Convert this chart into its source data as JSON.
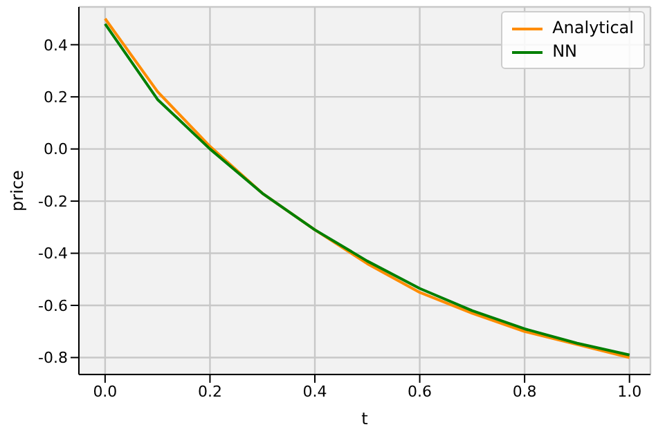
{
  "chart_data": {
    "type": "line",
    "xlabel": "t",
    "ylabel": "price",
    "x": [
      0,
      0.1,
      0.2,
      0.3,
      0.4,
      0.5,
      0.6,
      0.7,
      0.8,
      0.9,
      1.0
    ],
    "series": [
      {
        "name": "Analytical",
        "color": "#ff8c00",
        "values": [
          0.5,
          0.22,
          0.01,
          -0.17,
          -0.31,
          -0.44,
          -0.55,
          -0.63,
          -0.7,
          -0.75,
          -0.8
        ]
      },
      {
        "name": "NN",
        "color": "#007f00",
        "values": [
          0.48,
          0.19,
          0.0,
          -0.17,
          -0.31,
          -0.43,
          -0.535,
          -0.62,
          -0.69,
          -0.745,
          -0.79
        ]
      }
    ],
    "xlim": [
      -0.05,
      1.04
    ],
    "ylim": [
      -0.865,
      0.545
    ],
    "xticks": [
      {
        "value": 0,
        "label": "0.0"
      },
      0.2,
      0.4,
      0.6,
      0.8,
      {
        "value": 1,
        "label": "1.0"
      }
    ],
    "yticks": [
      -0.8,
      -0.6,
      -0.4,
      -0.2,
      {
        "value": 0,
        "label": "0.0"
      },
      0.2,
      0.4
    ],
    "grid": true,
    "legend": "top right",
    "marker": "none",
    "line_style": "solid"
  }
}
